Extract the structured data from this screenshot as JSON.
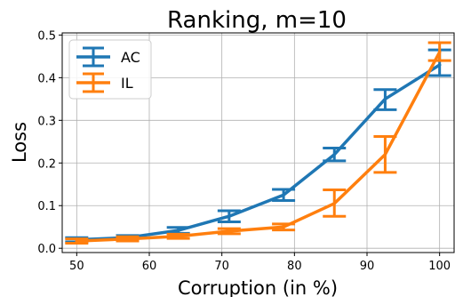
{
  "chart_data": {
    "type": "line",
    "title": "Ranking, m=10",
    "xlabel": "Corruption (in %)",
    "ylabel": "Loss",
    "xlim": [
      48,
      102
    ],
    "ylim": [
      -0.01,
      0.505
    ],
    "xticks": [
      50,
      60,
      70,
      80,
      90,
      100
    ],
    "yticks": [
      0.0,
      0.1,
      0.2,
      0.3,
      0.4,
      0.5
    ],
    "xtick_labels": [
      "50",
      "60",
      "70",
      "80",
      "90",
      "100"
    ],
    "ytick_labels": [
      "0.0",
      "0.1",
      "0.2",
      "0.3",
      "0.4",
      "0.5"
    ],
    "grid": true,
    "legend_position": "top-left",
    "x": [
      50,
      57,
      64,
      71,
      78.5,
      85.5,
      92.5,
      100
    ],
    "series": [
      {
        "name": "AC",
        "color": "#1f77b4",
        "values": [
          0.02,
          0.025,
          0.042,
          0.075,
          0.125,
          0.22,
          0.35,
          0.43
        ],
        "err_low": [
          0.015,
          0.02,
          0.035,
          0.062,
          0.112,
          0.205,
          0.325,
          0.405
        ],
        "err_high": [
          0.025,
          0.03,
          0.049,
          0.088,
          0.138,
          0.235,
          0.372,
          0.465
        ]
      },
      {
        "name": "IL",
        "color": "#ff7f0e",
        "values": [
          0.017,
          0.022,
          0.028,
          0.04,
          0.05,
          0.105,
          0.22,
          0.46
        ],
        "err_low": [
          0.012,
          0.017,
          0.023,
          0.034,
          0.043,
          0.075,
          0.178,
          0.44
        ],
        "err_high": [
          0.022,
          0.027,
          0.033,
          0.046,
          0.057,
          0.137,
          0.262,
          0.482
        ]
      }
    ]
  }
}
